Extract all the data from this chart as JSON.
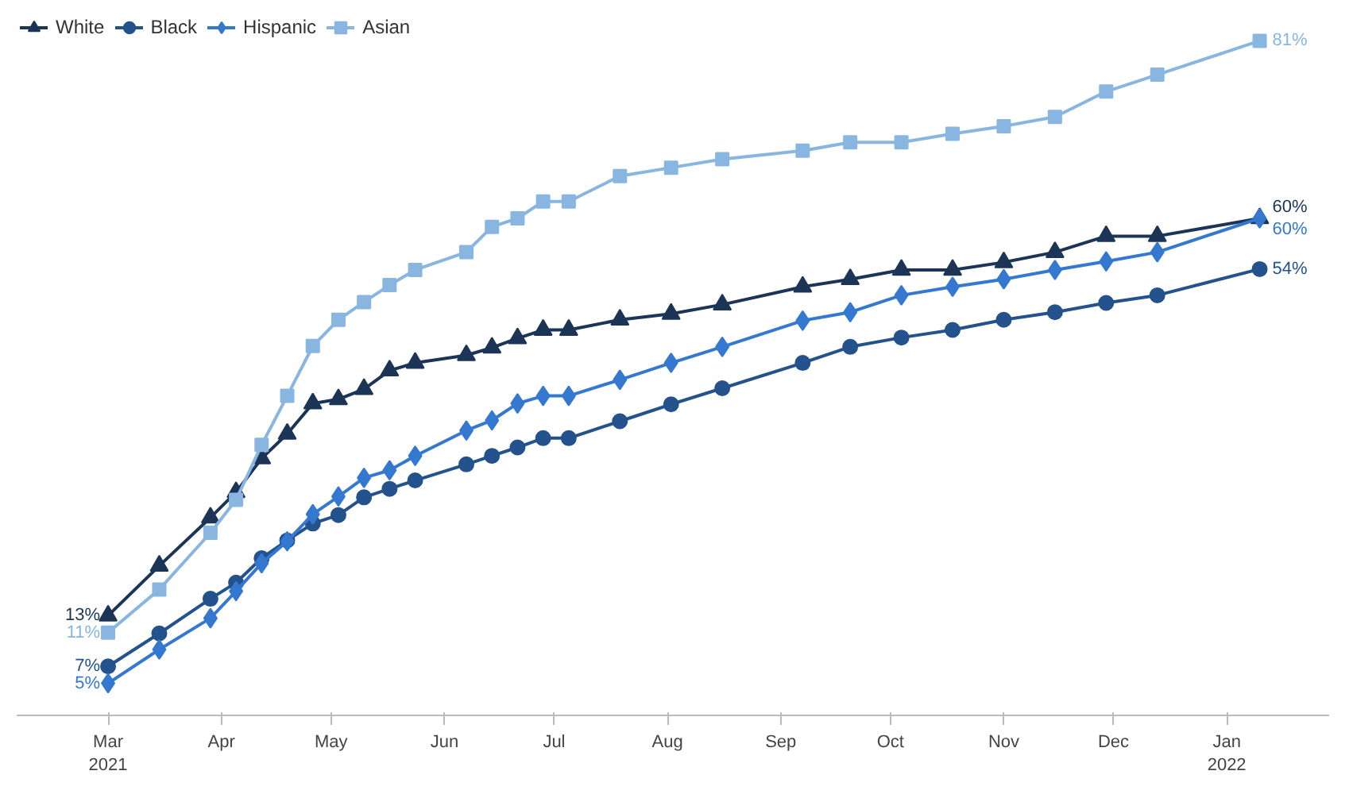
{
  "chart_data": {
    "type": "line",
    "x": [
      "2021-03-01",
      "2021-03-15",
      "2021-03-29",
      "2021-04-05",
      "2021-04-12",
      "2021-04-19",
      "2021-04-26",
      "2021-05-03",
      "2021-05-10",
      "2021-05-17",
      "2021-05-24",
      "2021-06-07",
      "2021-06-14",
      "2021-06-21",
      "2021-06-28",
      "2021-07-05",
      "2021-07-19",
      "2021-08-02",
      "2021-08-16",
      "2021-09-07",
      "2021-09-20",
      "2021-10-04",
      "2021-10-18",
      "2021-11-01",
      "2021-11-15",
      "2021-11-29",
      "2021-12-13",
      "2022-01-10"
    ],
    "series": [
      {
        "name": "White",
        "color": "#1c3557",
        "marker": "triangle",
        "values": [
          13,
          18.9,
          24.6,
          27.6,
          31.6,
          34.5,
          38.1,
          38.6,
          39.8,
          42,
          42.9,
          43.8,
          44.7,
          45.8,
          46.8,
          46.8,
          48,
          48.7,
          49.8,
          51.9,
          52.8,
          53.9,
          53.9,
          54.8,
          56,
          57.9,
          57.9,
          60
        ],
        "value_labels": [
          "13%",
          null,
          null,
          null,
          null,
          null,
          null,
          null,
          null,
          null,
          null,
          null,
          null,
          null,
          null,
          null,
          null,
          null,
          null,
          null,
          null,
          null,
          null,
          null,
          null,
          null,
          null,
          "60%"
        ]
      },
      {
        "name": "Black",
        "color": "#24528c",
        "marker": "circle",
        "values": [
          7,
          10.9,
          15,
          16.9,
          19.8,
          21.9,
          23.9,
          24.9,
          27,
          28,
          29,
          30.9,
          31.9,
          32.9,
          34,
          34,
          36,
          38,
          39.9,
          42.9,
          44.8,
          45.9,
          46.8,
          48,
          48.9,
          50,
          50.9,
          54
        ],
        "value_labels": [
          "7%",
          null,
          null,
          null,
          null,
          null,
          null,
          null,
          null,
          null,
          null,
          null,
          null,
          null,
          null,
          null,
          null,
          null,
          null,
          null,
          null,
          null,
          null,
          null,
          null,
          null,
          null,
          "54%"
        ]
      },
      {
        "name": "Hispanic",
        "color": "#3478d0",
        "marker": "diamond",
        "values": [
          5,
          9,
          12.7,
          15.9,
          19.2,
          21.8,
          25,
          27.1,
          29.3,
          30.2,
          31.9,
          34.9,
          36.1,
          38.1,
          39,
          39,
          40.9,
          42.9,
          44.8,
          47.9,
          48.9,
          50.9,
          51.9,
          52.8,
          53.9,
          54.9,
          56,
          60
        ],
        "value_labels": [
          "5%",
          null,
          null,
          null,
          null,
          null,
          null,
          null,
          null,
          null,
          null,
          null,
          null,
          null,
          null,
          null,
          null,
          null,
          null,
          null,
          null,
          null,
          null,
          null,
          null,
          null,
          null,
          "60%"
        ]
      },
      {
        "name": "Asian",
        "color": "#88b6e0",
        "marker": "square",
        "values": [
          11,
          16.1,
          22.8,
          26.7,
          33.2,
          39,
          44.9,
          48,
          50.1,
          52.1,
          53.9,
          56,
          59,
          60,
          62,
          62,
          65,
          66,
          67,
          68,
          69,
          69,
          70,
          70.9,
          72,
          75,
          77,
          81
        ],
        "value_labels": [
          "11%",
          null,
          null,
          null,
          null,
          null,
          null,
          null,
          null,
          null,
          null,
          null,
          null,
          null,
          null,
          null,
          null,
          null,
          null,
          null,
          null,
          null,
          null,
          null,
          null,
          null,
          null,
          "81%"
        ]
      }
    ],
    "xlim": [
      "2021-02-04",
      "2022-01-29"
    ],
    "xticks": [
      {
        "value": "2021-03-01",
        "label": "Mar\n2021"
      },
      {
        "value": "2021-04-01",
        "label": "Apr"
      },
      {
        "value": "2021-05-01",
        "label": "May"
      },
      {
        "value": "2021-06-01",
        "label": "Jun"
      },
      {
        "value": "2021-07-01",
        "label": "Jul"
      },
      {
        "value": "2021-08-01",
        "label": "Aug"
      },
      {
        "value": "2021-09-01",
        "label": "Sep"
      },
      {
        "value": "2021-10-01",
        "label": "Oct"
      },
      {
        "value": "2021-11-01",
        "label": "Nov"
      },
      {
        "value": "2021-12-01",
        "label": "Dec"
      },
      {
        "value": "2022-01-01",
        "label": "Jan\n2022"
      }
    ],
    "tick_labels": "x",
    "grid": false,
    "legend": "top left",
    "line_style": "solid"
  }
}
